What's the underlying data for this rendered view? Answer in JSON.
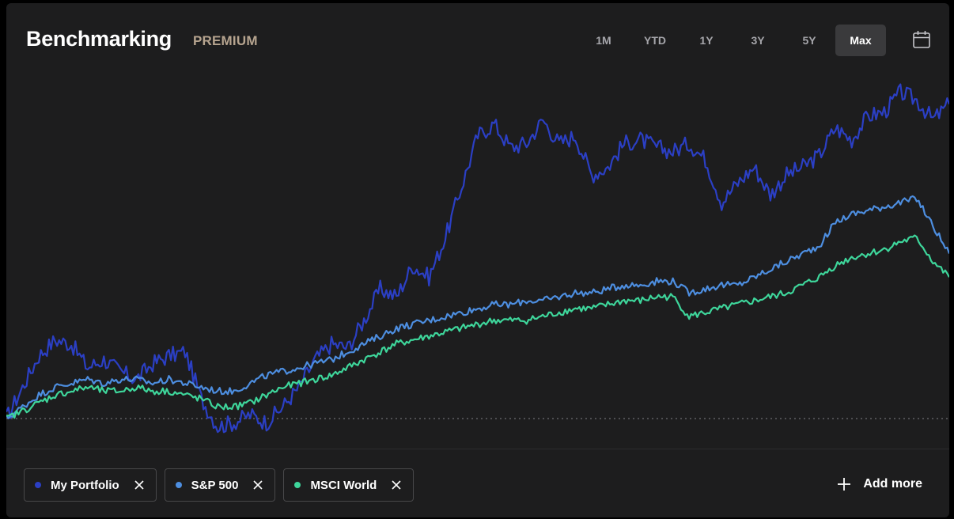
{
  "header": {
    "title": "Benchmarking",
    "badge": "PREMIUM",
    "ranges": [
      {
        "label": "1M",
        "active": false
      },
      {
        "label": "YTD",
        "active": false
      },
      {
        "label": "1Y",
        "active": false
      },
      {
        "label": "3Y",
        "active": false
      },
      {
        "label": "5Y",
        "active": false
      },
      {
        "label": "Max",
        "active": true
      }
    ],
    "calendar_icon": "calendar-icon"
  },
  "chart_data": {
    "type": "line",
    "baseline": 0,
    "ylim": [
      -5,
      88
    ],
    "grid": false,
    "series": [
      {
        "name": "My Portfolio",
        "color": "#2b3fc4",
        "values": [
          0,
          8,
          16,
          20,
          19,
          13,
          15,
          12,
          10,
          14,
          16,
          17,
          5,
          -2,
          -1,
          1,
          -1,
          3,
          8,
          15,
          19,
          18,
          25,
          33,
          31,
          39,
          36,
          46,
          59,
          72,
          75,
          69,
          70,
          76,
          70,
          72,
          62,
          64,
          70,
          71,
          69,
          68,
          70,
          66,
          55,
          60,
          64,
          57,
          62,
          64,
          67,
          74,
          71,
          77,
          78,
          83,
          81,
          76,
          80
        ]
      },
      {
        "name": "S&P 500",
        "color": "#4d8ee0",
        "values": [
          0,
          3,
          6,
          8,
          9,
          10,
          9,
          10,
          10,
          9,
          10,
          9,
          8,
          7,
          7,
          9,
          11,
          12,
          13,
          14,
          15,
          17,
          19,
          21,
          23,
          24,
          25,
          26,
          27,
          28,
          29,
          29,
          30,
          30,
          31,
          32,
          32,
          33,
          34,
          34,
          35,
          35,
          32,
          33,
          34,
          34,
          36,
          38,
          40,
          42,
          44,
          50,
          52,
          53,
          54,
          55,
          56,
          49,
          42
        ]
      },
      {
        "name": "MSCI World",
        "color": "#3ed69b",
        "values": [
          0,
          2,
          4,
          6,
          7,
          8,
          7,
          7,
          8,
          7,
          7,
          6,
          5,
          3,
          3,
          4,
          6,
          8,
          9,
          10,
          11,
          13,
          15,
          17,
          19,
          20,
          21,
          22,
          23,
          24,
          25,
          25,
          25,
          26,
          27,
          28,
          28,
          29,
          30,
          30,
          31,
          31,
          26,
          27,
          28,
          29,
          30,
          31,
          32,
          34,
          36,
          39,
          41,
          42,
          43,
          45,
          46,
          40,
          36
        ]
      }
    ]
  },
  "legend": {
    "chips": [
      {
        "label": "My Portfolio",
        "color": "#2b3fc4"
      },
      {
        "label": "S&P 500",
        "color": "#4d8ee0"
      },
      {
        "label": "MSCI World",
        "color": "#3ed69b"
      }
    ],
    "add_more_label": "Add more",
    "remove_icon": "close-icon",
    "add_icon": "plus-icon"
  }
}
